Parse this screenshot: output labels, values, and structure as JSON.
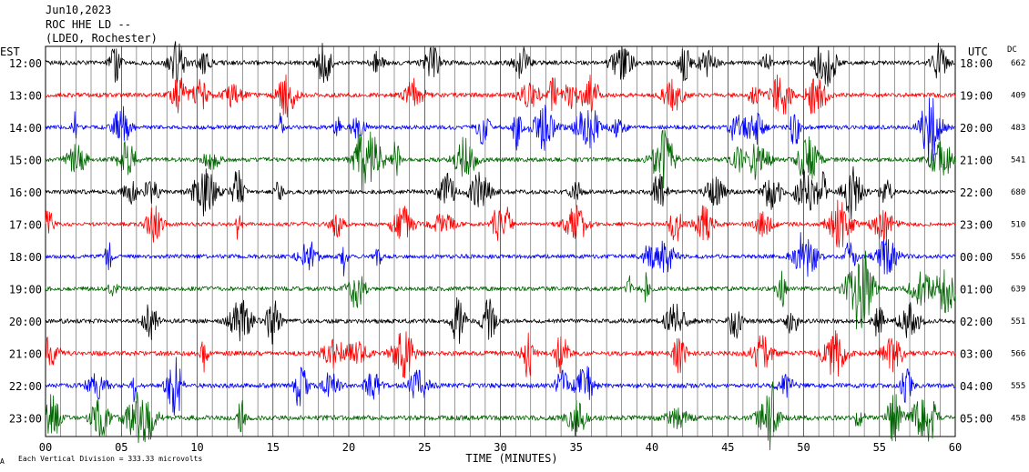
{
  "header": {
    "date": "Jun10,2023",
    "station": "ROC HHE LD --",
    "location": "(LDEO, Rochester)"
  },
  "left_axis_label": "EST",
  "right_axis_label": "UTC",
  "dc_label": "DC",
  "footer": {
    "scale_note": "Each Vertical Division =  333.33 microvolts",
    "corner_mark": "A"
  },
  "colors": {
    "black": "#000000",
    "red": "#ff0000",
    "blue": "#0000ff",
    "green": "#006600",
    "grid": "#000000"
  },
  "chart_data": {
    "type": "line",
    "title": "ROC HHE LD --",
    "xlabel": "TIME (MINUTES)",
    "ylabel": "",
    "xlim": [
      0,
      60
    ],
    "x_ticks": [
      "00",
      "05",
      "10",
      "15",
      "20",
      "25",
      "30",
      "35",
      "40",
      "45",
      "50",
      "55",
      "60"
    ],
    "grid": "vertical lines every minute",
    "color_cycle": [
      "black",
      "red",
      "blue",
      "green"
    ],
    "rows": [
      {
        "est": "12:00",
        "utc": "18:00",
        "dc": "662",
        "color": "black",
        "amplitude": 0.8
      },
      {
        "est": "13:00",
        "utc": "19:00",
        "dc": "409",
        "color": "red",
        "amplitude": 0.8
      },
      {
        "est": "14:00",
        "utc": "20:00",
        "dc": "483",
        "color": "blue",
        "amplitude": 0.75
      },
      {
        "est": "15:00",
        "utc": "21:00",
        "dc": "541",
        "color": "green",
        "amplitude": 0.8
      },
      {
        "est": "16:00",
        "utc": "22:00",
        "dc": "680",
        "color": "black",
        "amplitude": 0.8
      },
      {
        "est": "17:00",
        "utc": "23:00",
        "dc": "510",
        "color": "red",
        "amplitude": 0.7
      },
      {
        "est": "18:00",
        "utc": "00:00",
        "dc": "556",
        "color": "blue",
        "amplitude": 0.75
      },
      {
        "est": "19:00",
        "utc": "01:00",
        "dc": "639",
        "color": "green",
        "amplitude": 0.8
      },
      {
        "est": "20:00",
        "utc": "02:00",
        "dc": "551",
        "color": "black",
        "amplitude": 0.8
      },
      {
        "est": "21:00",
        "utc": "03:00",
        "dc": "566",
        "color": "red",
        "amplitude": 0.85
      },
      {
        "est": "22:00",
        "utc": "04:00",
        "dc": "555",
        "color": "blue",
        "amplitude": 0.85
      },
      {
        "est": "23:00",
        "utc": "05:00",
        "dc": "458",
        "color": "green",
        "amplitude": 0.9
      }
    ]
  }
}
